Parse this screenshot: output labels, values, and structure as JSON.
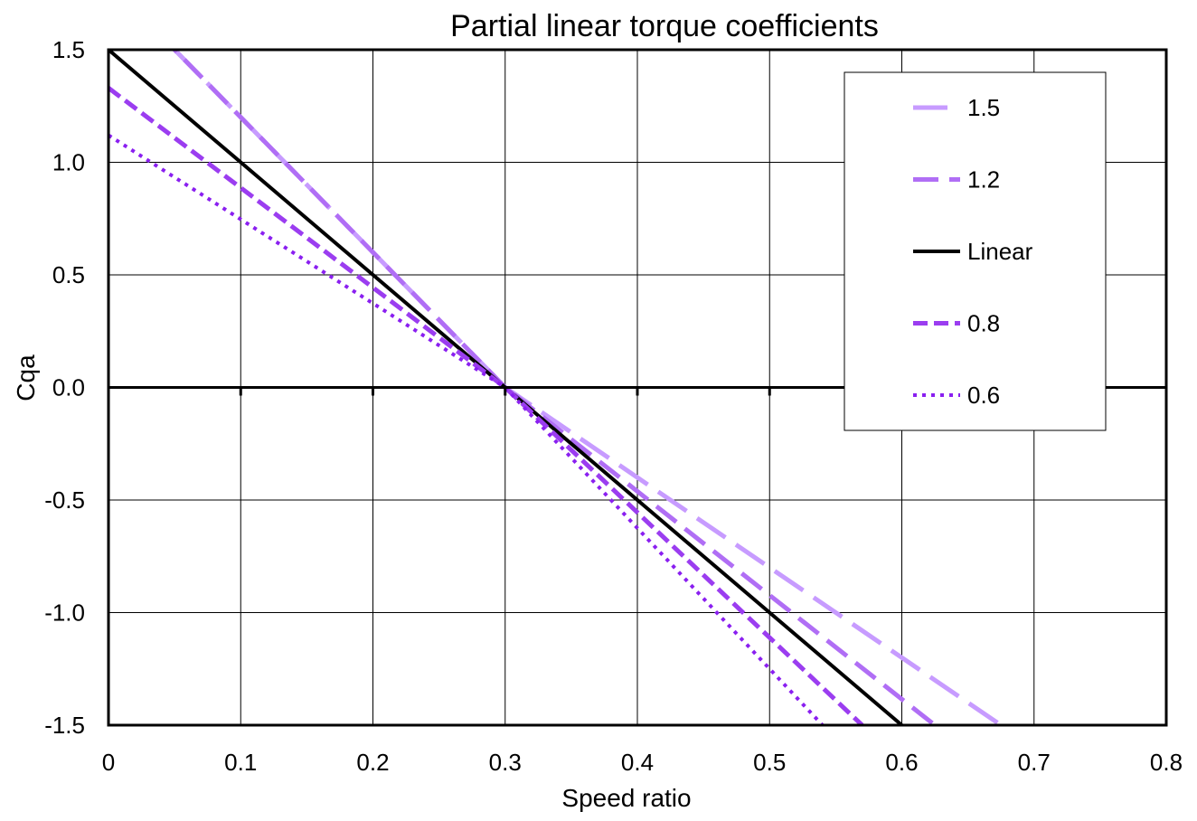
{
  "chart_data": {
    "type": "line",
    "title": "Partial linear torque coefficients",
    "xlabel": "Speed ratio",
    "ylabel": "Cqa",
    "xlim": [
      0,
      0.8
    ],
    "ylim": [
      -1.5,
      1.5
    ],
    "x_ticks": [
      0,
      0.1,
      0.2,
      0.3,
      0.4,
      0.5,
      0.6,
      0.7,
      0.8
    ],
    "x_tick_labels": [
      "0",
      "0.1",
      "0.2",
      "0.3",
      "0.4",
      "0.5",
      "0.6",
      "0.7",
      "0.8"
    ],
    "y_ticks": [
      -1.5,
      -1.0,
      -0.5,
      0.0,
      0.5,
      1.0,
      1.5
    ],
    "y_tick_labels": [
      "-1.5",
      "-1.0",
      "-0.5",
      "0.0",
      "0.5",
      "1.0",
      "1.5"
    ],
    "grid": true,
    "legend_position": "top-right",
    "series": [
      {
        "name": "1.5",
        "color": "#c79bff",
        "style": "long-dash",
        "x": [
          0.0,
          0.3,
          0.675
        ],
        "y": [
          1.8,
          0.0,
          -1.5
        ]
      },
      {
        "name": "1.2",
        "color": "#b06ef5",
        "style": "dash",
        "x": [
          0.0,
          0.3,
          0.625
        ],
        "y": [
          1.8,
          0.0,
          -1.5
        ]
      },
      {
        "name": "Linear",
        "color": "#000000",
        "style": "solid",
        "x": [
          0.0,
          0.3,
          0.6
        ],
        "y": [
          1.5,
          0.0,
          -1.5
        ]
      },
      {
        "name": "0.8",
        "color": "#9b3df0",
        "style": "short-dash",
        "x": [
          0.0,
          0.3,
          0.57
        ],
        "y": [
          1.33,
          0.0,
          -1.5
        ]
      },
      {
        "name": "0.6",
        "color": "#8a1ff0",
        "style": "dot",
        "x": [
          0.0,
          0.3,
          0.54
        ],
        "y": [
          1.12,
          0.0,
          -1.5
        ]
      }
    ]
  }
}
